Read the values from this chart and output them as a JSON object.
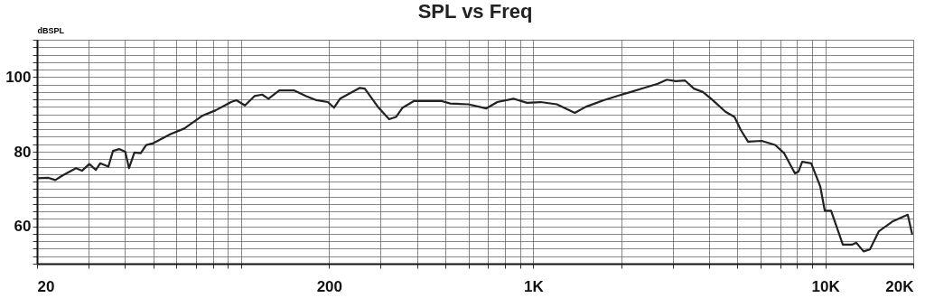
{
  "chart_data": {
    "type": "line",
    "title": "SPL vs Freq",
    "ylabel": "dBSPL",
    "x": [
      20,
      21.9,
      23.1,
      24.4,
      27.2,
      28.5,
      30.2,
      31.8,
      32.9,
      35.1,
      36.4,
      38.2,
      40.1,
      41.3,
      43.1,
      45.3,
      47.3,
      49.7,
      57.3,
      63.8,
      73.5,
      81.8,
      92.3,
      96.3,
      103,
      111,
      118,
      124,
      135,
      152,
      167,
      181,
      198,
      208,
      218,
      255,
      265,
      294,
      321,
      339,
      357,
      391,
      420,
      484,
      520,
      600,
      691,
      753,
      855,
      952,
      1059,
      1204,
      1388,
      1511,
      1742,
      2009,
      2157,
      2400,
      2670,
      2866,
      3078,
      3304,
      3548,
      3810,
      4091,
      4551,
      4887,
      5136,
      5438,
      6050,
      6730,
      7228,
      7871,
      8097,
      8332,
      8946,
      9608,
      9956,
      10464,
      11478,
      12326,
      12770,
      13518,
      14208,
      15256,
      16970,
      18614,
      19152,
      19844
    ],
    "series": [
      {
        "color": "#222222",
        "values": [
          72.9,
          73,
          72.4,
          73.6,
          75.6,
          74.9,
          76.7,
          75.1,
          76.9,
          76,
          80.2,
          80.7,
          80,
          75.6,
          79.8,
          79.6,
          81.8,
          82.2,
          84.7,
          86.2,
          89.6,
          91.1,
          93.3,
          93.8,
          92.4,
          94.9,
          95.3,
          94.2,
          96.4,
          96.4,
          94.9,
          93.8,
          93.3,
          91.8,
          94.2,
          97.1,
          96.9,
          92,
          88.7,
          89.3,
          91.8,
          93.6,
          93.6,
          93.6,
          92.9,
          92.7,
          91.6,
          93.3,
          94.2,
          93.1,
          93.3,
          92.7,
          90.4,
          92,
          93.8,
          95.3,
          96,
          97.1,
          98.2,
          99.3,
          98.9,
          99.1,
          96.9,
          96,
          94,
          90.7,
          89.3,
          85.8,
          82.7,
          82.9,
          81.8,
          79.6,
          74.2,
          74.7,
          77.3,
          76.9,
          70.7,
          64.2,
          64.2,
          55.1,
          55.1,
          55.6,
          53.3,
          53.8,
          58.7,
          61.3,
          62.7,
          63.1,
          57.8
        ]
      }
    ],
    "log": "x",
    "xlim": [
      20,
      20000
    ],
    "xticks": [
      20,
      {
        "value": 30,
        "label": null
      },
      {
        "value": 40,
        "label": null
      },
      {
        "value": 50,
        "label": null
      },
      {
        "value": 60,
        "label": null
      },
      {
        "value": 70,
        "label": null
      },
      {
        "value": 80,
        "label": null
      },
      {
        "value": 90,
        "label": null
      },
      {
        "value": 100,
        "label": null
      },
      200,
      {
        "value": 300,
        "label": null
      },
      {
        "value": 400,
        "label": null
      },
      {
        "value": 500,
        "label": null
      },
      {
        "value": 600,
        "label": null
      },
      {
        "value": 700,
        "label": null
      },
      {
        "value": 800,
        "label": null
      },
      {
        "value": 900,
        "label": null
      },
      {
        "value": 1000,
        "label": "1K"
      },
      {
        "value": 2000,
        "label": null
      },
      {
        "value": 3000,
        "label": null
      },
      {
        "value": 4000,
        "label": null
      },
      {
        "value": 5000,
        "label": null
      },
      {
        "value": 6000,
        "label": null
      },
      {
        "value": 7000,
        "label": null
      },
      {
        "value": 8000,
        "label": null
      },
      {
        "value": 9000,
        "label": null
      },
      {
        "value": 10000,
        "label": "10K"
      },
      {
        "value": 20000,
        "label": "20K"
      }
    ],
    "ylim": [
      50,
      110
    ],
    "yticks": [
      {
        "value": 50,
        "label": null
      },
      {
        "value": 52,
        "label": null
      },
      {
        "value": 54,
        "label": null
      },
      {
        "value": 56,
        "label": null
      },
      {
        "value": 58,
        "label": null
      },
      60,
      {
        "value": 62,
        "label": null
      },
      {
        "value": 64,
        "label": null
      },
      {
        "value": 66,
        "label": null
      },
      {
        "value": 68,
        "label": null
      },
      {
        "value": 70,
        "label": null
      },
      {
        "value": 72,
        "label": null
      },
      {
        "value": 74,
        "label": null
      },
      {
        "value": 76,
        "label": null
      },
      {
        "value": 78,
        "label": null
      },
      80,
      {
        "value": 82,
        "label": null
      },
      {
        "value": 84,
        "label": null
      },
      {
        "value": 86,
        "label": null
      },
      {
        "value": 88,
        "label": null
      },
      {
        "value": 90,
        "label": null
      },
      {
        "value": 92,
        "label": null
      },
      {
        "value": 94,
        "label": null
      },
      {
        "value": 96,
        "label": null
      },
      {
        "value": 98,
        "label": null
      },
      100,
      {
        "value": 102,
        "label": null
      },
      {
        "value": 104,
        "label": null
      },
      {
        "value": 106,
        "label": null
      },
      {
        "value": 108,
        "label": null
      },
      {
        "value": 110,
        "label": null
      }
    ],
    "grid": true,
    "legend": false,
    "marker": "none",
    "line_style": "solid"
  }
}
